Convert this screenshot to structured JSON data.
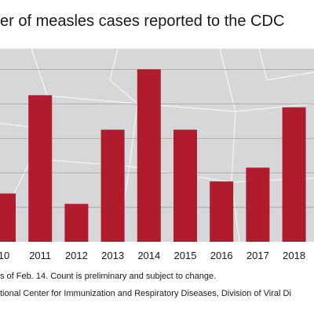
{
  "header": {
    "title": "er of measles cases reported to the CDC"
  },
  "chart_data": {
    "type": "bar",
    "categories": [
      "10",
      "2011",
      "2012",
      "2013",
      "2014",
      "2015",
      "2016",
      "2017",
      "2018"
    ],
    "values": [
      0.28,
      0.85,
      0.22,
      0.65,
      1.0,
      0.65,
      0.35,
      0.43,
      0.78
    ],
    "value_scale_note_hidden": true,
    "ylim": [
      0,
      1.12
    ],
    "grid": true,
    "bar_color": "#b01c2e",
    "background_color": "#d6d7d9"
  },
  "footnotes": {
    "line1": "s of Feb. 14. Count is preliminary and subject to change.",
    "line2": "tional Center for Immunization and Respiratory Diseases, Division of Viral Di"
  }
}
